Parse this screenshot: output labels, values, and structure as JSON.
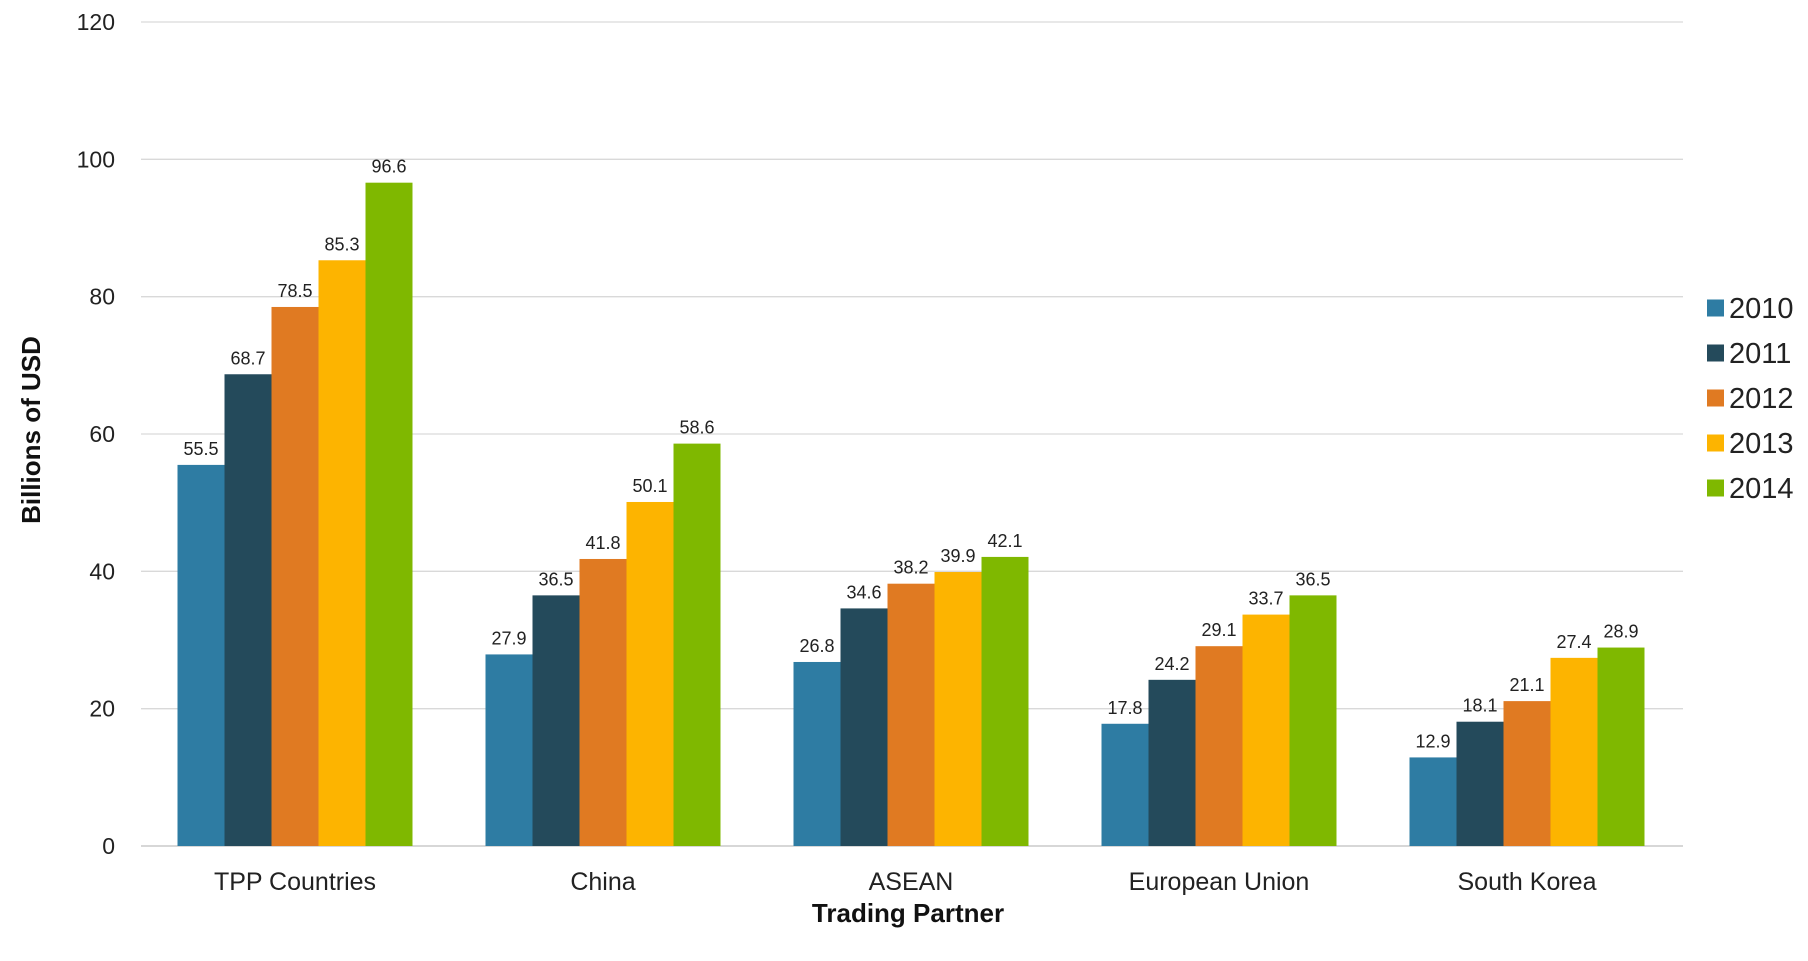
{
  "chart_data": {
    "type": "bar",
    "title": "",
    "xlabel": "Trading Partner",
    "ylabel": "Billions of USD",
    "ylim": [
      0,
      120
    ],
    "yticks": [
      0,
      20,
      40,
      60,
      80,
      100,
      120
    ],
    "grid": true,
    "legend_position": "right",
    "categories": [
      "TPP Countries",
      "China",
      "ASEAN",
      "European Union",
      "South Korea"
    ],
    "series": [
      {
        "name": "2010",
        "color": "#2E7CA3",
        "values": [
          55.5,
          27.9,
          26.8,
          17.8,
          12.9
        ]
      },
      {
        "name": "2011",
        "color": "#244A5B",
        "values": [
          68.7,
          36.5,
          34.6,
          24.2,
          18.1
        ]
      },
      {
        "name": "2012",
        "color": "#E07A22",
        "values": [
          78.5,
          41.8,
          38.2,
          29.1,
          21.1
        ]
      },
      {
        "name": "2013",
        "color": "#FDB400",
        "values": [
          85.3,
          50.1,
          39.9,
          33.7,
          27.4
        ]
      },
      {
        "name": "2014",
        "color": "#7FB800",
        "values": [
          96.6,
          58.6,
          42.1,
          36.5,
          28.9
        ]
      }
    ],
    "data_labels": true
  }
}
